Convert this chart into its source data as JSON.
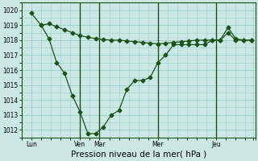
{
  "background_color": "#cce8e4",
  "grid_color": "#99cccc",
  "line_color": "#1a5218",
  "vline_color": "#1a5218",
  "title": "Pression niveau de la mer( hPa )",
  "ylim": [
    1011.5,
    1020.5
  ],
  "yticks": [
    1012,
    1013,
    1014,
    1015,
    1016,
    1017,
    1018,
    1019,
    1020
  ],
  "xlim": [
    0,
    240
  ],
  "xtick_positions": [
    10,
    60,
    80,
    140,
    200,
    238
  ],
  "xtick_labels": [
    "Lun",
    "Ven",
    "Mar",
    "Mer",
    "Jeu",
    ""
  ],
  "vline_positions": [
    60,
    80,
    140,
    200
  ],
  "line1_x": [
    10,
    20,
    28,
    36,
    44,
    52,
    60,
    68,
    76,
    84,
    92,
    100,
    108,
    116,
    124,
    132,
    140,
    148,
    156,
    164,
    172,
    180,
    188,
    196,
    204,
    212,
    220,
    228,
    236
  ],
  "line1_y": [
    1019.8,
    1019.0,
    1019.1,
    1018.9,
    1018.7,
    1018.5,
    1018.3,
    1018.2,
    1018.1,
    1018.05,
    1018.0,
    1018.0,
    1017.95,
    1017.9,
    1017.85,
    1017.8,
    1017.75,
    1017.8,
    1017.85,
    1017.9,
    1017.95,
    1018.0,
    1018.0,
    1018.0,
    1018.0,
    1018.85,
    1018.1,
    1018.0,
    1018.0
  ],
  "line2_x": [
    20,
    28,
    36,
    44,
    52,
    60,
    68,
    76,
    84,
    92,
    100,
    108,
    116,
    124,
    132,
    140,
    148,
    156,
    164,
    172,
    180,
    188,
    196,
    204,
    212,
    220,
    228,
    236
  ],
  "line2_y": [
    1019.0,
    1018.1,
    1016.5,
    1015.8,
    1014.3,
    1013.2,
    1011.75,
    1011.75,
    1012.2,
    1013.0,
    1013.3,
    1014.7,
    1015.3,
    1015.3,
    1015.5,
    1016.5,
    1017.0,
    1017.7,
    1017.7,
    1017.7,
    1017.7,
    1017.7,
    1018.0,
    1018.0,
    1018.5,
    1018.0,
    1018.0,
    1018.0
  ],
  "marker": "D",
  "marker_size": 2.5,
  "linewidth": 0.9,
  "tick_fontsize": 5.5,
  "xlabel_fontsize": 7.5
}
